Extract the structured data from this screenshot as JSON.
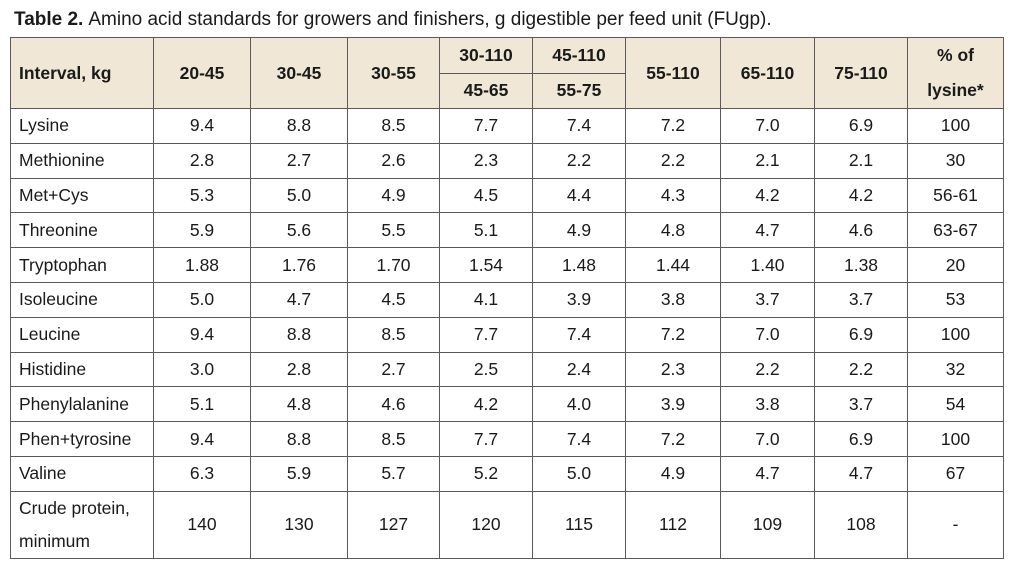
{
  "caption": {
    "label": "Table 2.",
    "text": "Amino acid standards for growers and finishers, g digestible per feed unit (FUgp)."
  },
  "header": {
    "interval": "Interval, kg",
    "c1": "20-45",
    "c2": "30-45",
    "c3": "30-55",
    "c4_top": "30-110",
    "c4_bottom": "45-65",
    "c5_top": "45-110",
    "c5_bottom": "55-75",
    "c6": "55-110",
    "c7": "65-110",
    "c8": "75-110",
    "pct_top": "% of",
    "pct_bottom": "lysine*"
  },
  "rows": [
    {
      "name": "Lysine",
      "v": [
        "9.4",
        "8.8",
        "8.5",
        "7.7",
        "7.4",
        "7.2",
        "7.0",
        "6.9",
        "100"
      ]
    },
    {
      "name": "Methionine",
      "v": [
        "2.8",
        "2.7",
        "2.6",
        "2.3",
        "2.2",
        "2.2",
        "2.1",
        "2.1",
        "30"
      ]
    },
    {
      "name": "Met+Cys",
      "v": [
        "5.3",
        "5.0",
        "4.9",
        "4.5",
        "4.4",
        "4.3",
        "4.2",
        "4.2",
        "56-61"
      ]
    },
    {
      "name": "Threonine",
      "v": [
        "5.9",
        "5.6",
        "5.5",
        "5.1",
        "4.9",
        "4.8",
        "4.7",
        "4.6",
        "63-67"
      ]
    },
    {
      "name": "Tryptophan",
      "v": [
        "1.88",
        "1.76",
        "1.70",
        "1.54",
        "1.48",
        "1.44",
        "1.40",
        "1.38",
        "20"
      ]
    },
    {
      "name": "Isoleucine",
      "v": [
        "5.0",
        "4.7",
        "4.5",
        "4.1",
        "3.9",
        "3.8",
        "3.7",
        "3.7",
        "53"
      ]
    },
    {
      "name": "Leucine",
      "v": [
        "9.4",
        "8.8",
        "8.5",
        "7.7",
        "7.4",
        "7.2",
        "7.0",
        "6.9",
        "100"
      ]
    },
    {
      "name": "Histidine",
      "v": [
        "3.0",
        "2.8",
        "2.7",
        "2.5",
        "2.4",
        "2.3",
        "2.2",
        "2.2",
        "32"
      ]
    },
    {
      "name": "Phenylalanine",
      "v": [
        "5.1",
        "4.8",
        "4.6",
        "4.2",
        "4.0",
        "3.9",
        "3.8",
        "3.7",
        "54"
      ]
    },
    {
      "name": "Phen+tyrosine",
      "v": [
        "9.4",
        "8.8",
        "8.5",
        "7.7",
        "7.4",
        "7.2",
        "7.0",
        "6.9",
        "100"
      ]
    },
    {
      "name": "Valine",
      "v": [
        "6.3",
        "5.9",
        "5.7",
        "5.2",
        "5.0",
        "4.9",
        "4.7",
        "4.7",
        "67"
      ]
    },
    {
      "name_line1": "Crude protein,",
      "name_line2": "minimum",
      "v": [
        "140",
        "130",
        "127",
        "120",
        "115",
        "112",
        "109",
        "108",
        "-"
      ]
    }
  ]
}
